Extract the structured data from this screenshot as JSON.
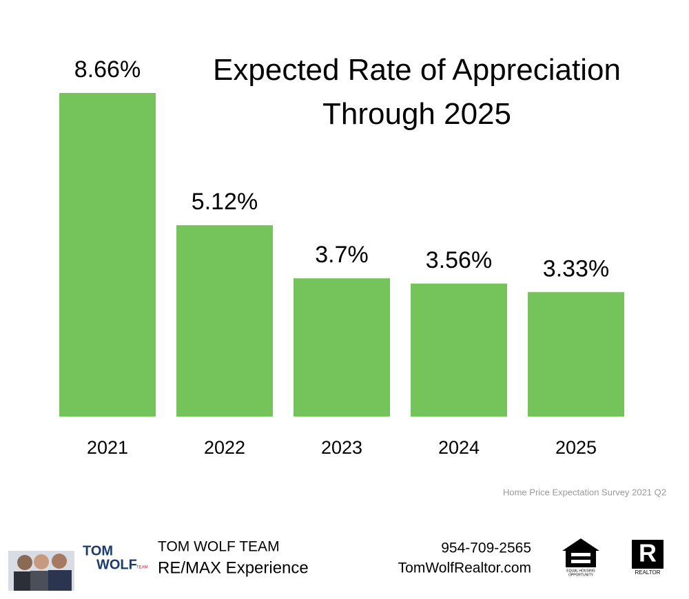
{
  "chart_data": {
    "type": "bar",
    "title": "Expected Rate of Appreciation Through 2025",
    "categories": [
      "2021",
      "2022",
      "2023",
      "2024",
      "2025"
    ],
    "values": [
      8.66,
      5.12,
      3.7,
      3.56,
      3.33
    ],
    "value_labels": [
      "8.66%",
      "5.12%",
      "3.7%",
      "3.56%",
      "3.33%"
    ],
    "color": "#74c35b",
    "source": "Home Price Expectation Survey 2021 Q2"
  },
  "footer": {
    "logo": {
      "top": "TOM",
      "bottom": "WOLF",
      "small": "TEAM"
    },
    "team": "TOM WOLF TEAM",
    "company": "RE/MAX Experience",
    "phone": "954-709-2565",
    "website": "TomWolfRealtor.com",
    "equal_housing": [
      "EQUAL HOUSING",
      "OPPORTUNITY"
    ],
    "realtor": "REALTOR",
    "realtor_mark": "R"
  }
}
